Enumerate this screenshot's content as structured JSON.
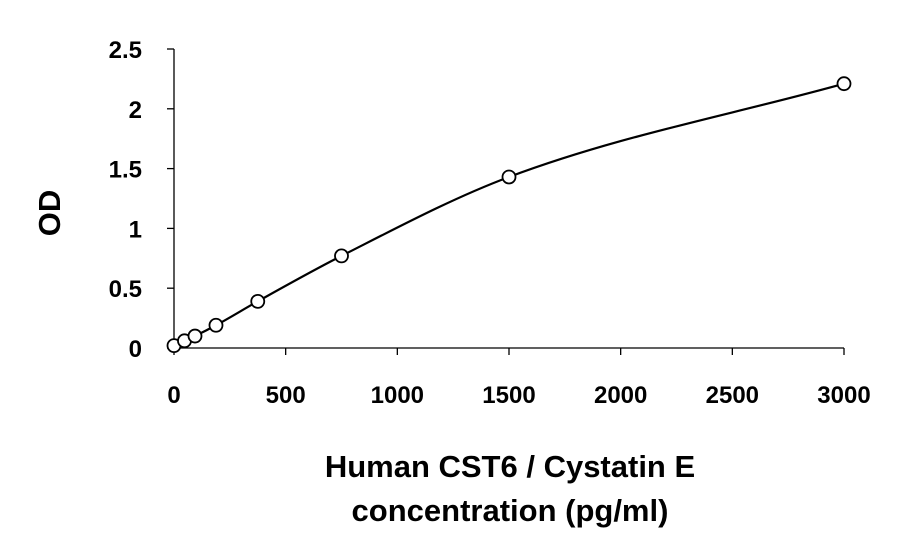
{
  "chart_data": {
    "type": "scatter",
    "title": "",
    "xlabel_lines": [
      "Human CST6 / Cystatin E",
      "concentration (pg/ml)"
    ],
    "ylabel": "OD",
    "xlim": [
      0,
      3000
    ],
    "ylim": [
      0,
      2.5
    ],
    "x_ticks": [
      0,
      500,
      1000,
      1500,
      2000,
      2500,
      3000
    ],
    "x_tick_labels": [
      "0",
      "500",
      "1000",
      "1500",
      "2000",
      "2500",
      "3000"
    ],
    "y_ticks": [
      0,
      0.5,
      1,
      1.5,
      2,
      2.5
    ],
    "y_tick_labels": [
      "0",
      "0.5",
      "1",
      "1.5",
      "2",
      "2.5"
    ],
    "grid": false,
    "legend": "none",
    "fit": "smooth curve through points",
    "series": [
      {
        "x": [
          0,
          47,
          94,
          188,
          375,
          750,
          1500,
          3000
        ],
        "y": [
          0.02,
          0.06,
          0.1,
          0.19,
          0.39,
          0.77,
          1.43,
          2.21
        ]
      }
    ]
  }
}
